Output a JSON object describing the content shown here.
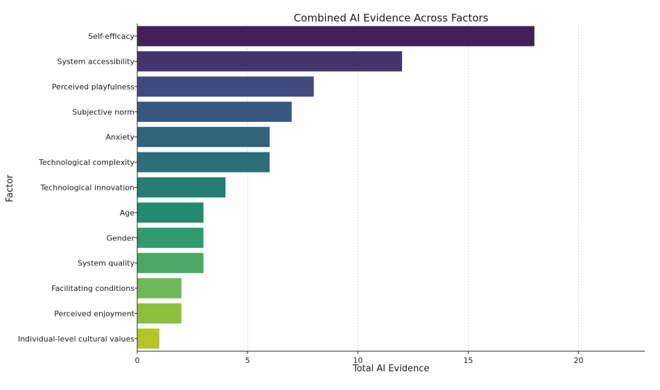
{
  "chart_data": {
    "type": "bar",
    "orientation": "horizontal",
    "title": "Combined AI Evidence Across Factors",
    "xlabel": "Total AI Evidence",
    "ylabel": "Factor",
    "xlim": [
      0,
      23
    ],
    "xticks": [
      0,
      5,
      10,
      15,
      20
    ],
    "grid": "vertical dashed",
    "categories": [
      "Self-efficacy",
      "System accessibility",
      "Perceived playfulness",
      "Subjective norm",
      "Anxiety",
      "Technological complexity",
      "Technological innovation",
      "Age",
      "Gender",
      "System quality",
      "Facilitating conditions",
      "Perceived enjoyment",
      "Individual-level cultural values"
    ],
    "values": [
      18,
      12,
      8,
      7,
      6,
      6,
      4,
      3,
      3,
      3,
      2,
      2,
      1
    ],
    "colors": [
      "#43205a",
      "#45356e",
      "#414a7d",
      "#395880",
      "#316478",
      "#2c6f79",
      "#267d74",
      "#248a6f",
      "#2f9b6d",
      "#4ba865",
      "#6db958",
      "#8dbe3e",
      "#b5c42b"
    ]
  }
}
